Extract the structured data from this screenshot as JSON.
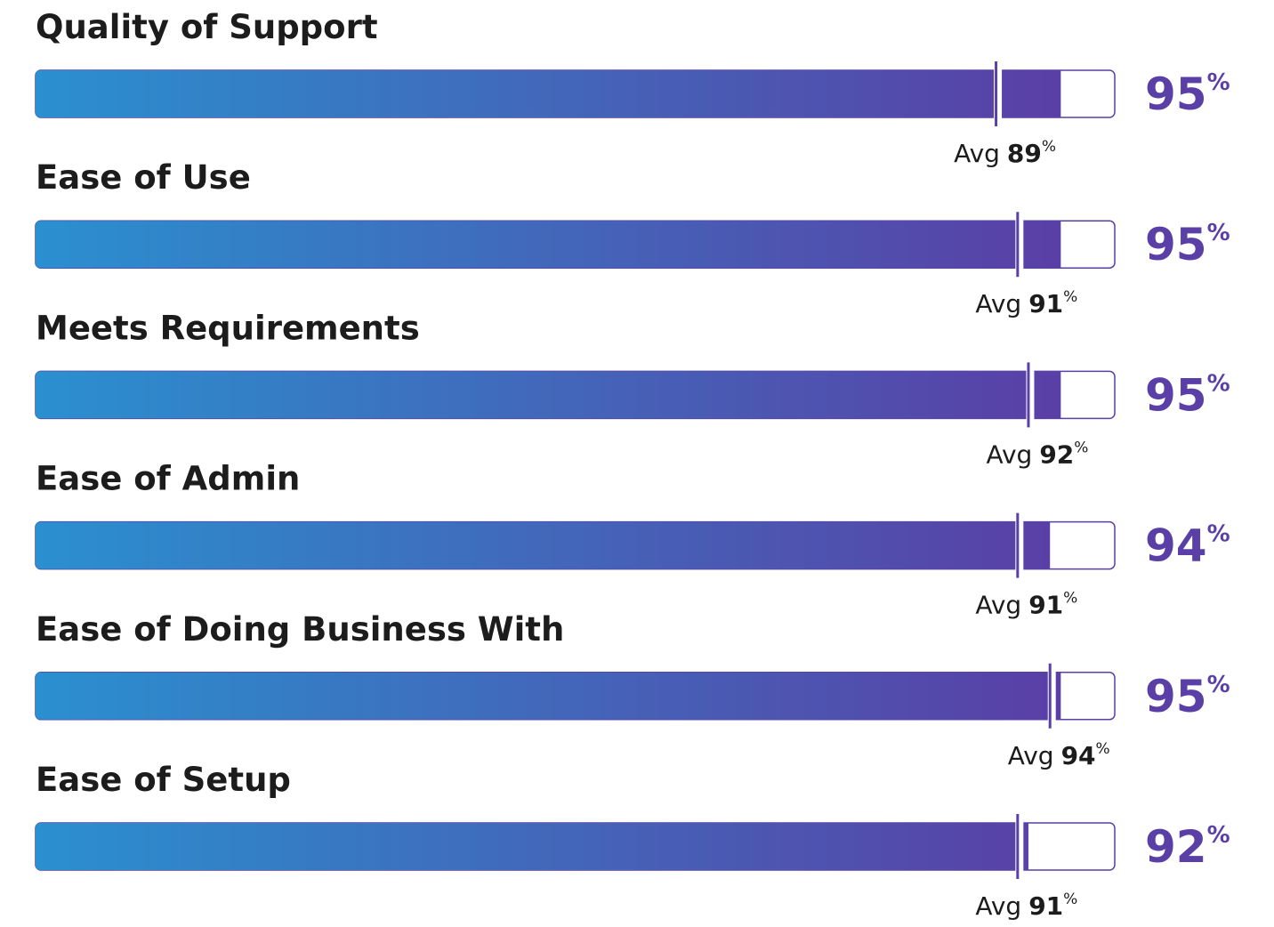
{
  "chart_data": {
    "type": "bar",
    "categories": [
      "Quality of Support",
      "Ease of Use",
      "Meets Requirements",
      "Ease of Admin",
      "Ease of Doing Business With",
      "Ease of Setup"
    ],
    "values": [
      95,
      95,
      95,
      94,
      95,
      92
    ],
    "averages": [
      89,
      91,
      92,
      91,
      94,
      91
    ],
    "avg_label": "Avg",
    "unit": "%",
    "xlim": [
      0,
      100
    ],
    "color": "#5a3fa6",
    "gradient": [
      "#2a90cf",
      "#5a3fa6"
    ]
  }
}
